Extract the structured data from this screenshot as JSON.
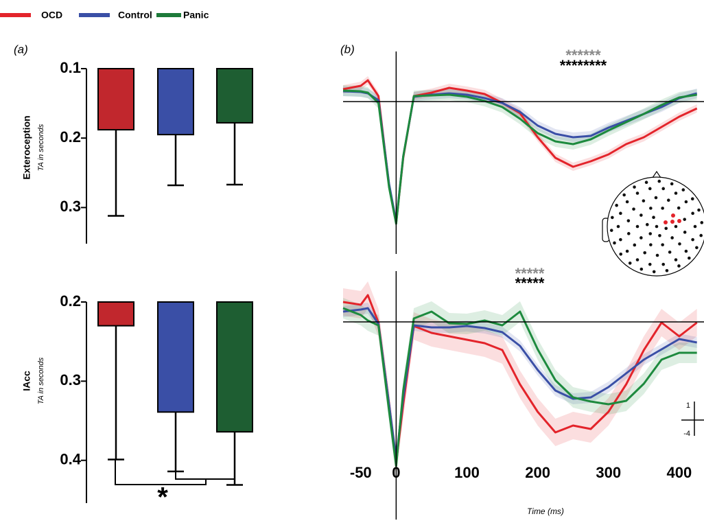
{
  "legend": [
    {
      "name": "OCD",
      "color": "#e3242b"
    },
    {
      "name": "Control",
      "color": "#3a4fa6"
    },
    {
      "name": "Panic",
      "color": "#1d7a3a"
    }
  ],
  "chart_data": [
    {
      "type": "bar",
      "panel_label": "(a)",
      "ylabel": "Exteroception",
      "ylabel_sub": "TA in seconds",
      "colors": [
        "#c1272d",
        "#3a4fa6",
        "#1e5e32"
      ],
      "values": [
        0.188,
        0.195,
        0.178
      ],
      "errors": [
        0.124,
        0.073,
        0.089
      ],
      "ylim": [
        0.1,
        0.352
      ],
      "yticks": [
        0.1,
        0.2,
        0.3
      ],
      "y_inverted": true
    },
    {
      "type": "bar",
      "ylabel": "IAcc",
      "ylabel_sub": "TA in seconds",
      "colors": [
        "#c1272d",
        "#3a4fa6",
        "#1e5e32"
      ],
      "values": [
        0.23,
        0.339,
        0.364
      ],
      "errors": [
        0.169,
        0.075,
        0.067
      ],
      "ylim": [
        0.2,
        0.454
      ],
      "yticks": [
        0.2,
        0.3,
        0.4
      ],
      "y_inverted": true,
      "annotation": "*"
    },
    {
      "type": "line",
      "panel_label": "(b)",
      "x": [
        -75,
        -50,
        -40,
        -25,
        -10,
        0,
        10,
        25,
        50,
        75,
        100,
        125,
        150,
        175,
        200,
        225,
        250,
        275,
        300,
        325,
        350,
        375,
        400,
        425
      ],
      "xlim": [
        -75,
        435
      ],
      "ylim": [
        -22,
        6.3
      ],
      "annotations": [
        {
          "text": "******",
          "color": "#8a8a8a"
        },
        {
          "text": "********",
          "color": "#000000"
        }
      ],
      "series": [
        {
          "color": "#e3242b",
          "sem": 0.6,
          "values": [
            1.8,
            2.3,
            3.1,
            0.8,
            -12.2,
            -17.7,
            -8.2,
            0.8,
            1.3,
            2,
            1.6,
            1.1,
            -0.2,
            -1.7,
            -5.2,
            -8.2,
            -9.5,
            -8.7,
            -7.7,
            -6.2,
            -5.2,
            -3.7,
            -2.2,
            -1.0
          ]
        },
        {
          "color": "#3a4fa6",
          "sem": 0.7,
          "values": [
            1.5,
            1.4,
            1.2,
            0.2,
            -12,
            -17.5,
            -8,
            0.7,
            1.0,
            1.2,
            1.0,
            0.5,
            -0.2,
            -1.5,
            -3.5,
            -4.7,
            -5.2,
            -5.0,
            -3.8,
            -2.8,
            -1.8,
            -0.8,
            0.5,
            1.2
          ]
        },
        {
          "color": "#1d8a3e",
          "sem": 0.8,
          "values": [
            1.6,
            1.5,
            1.3,
            -0.2,
            -12.5,
            -17.8,
            -8,
            0.8,
            0.9,
            1.0,
            0.7,
            0.1,
            -0.8,
            -2.5,
            -4.6,
            -5.8,
            -6.2,
            -5.5,
            -4.2,
            -3.0,
            -1.8,
            -0.5,
            0.6,
            1.0
          ]
        }
      ]
    },
    {
      "type": "line",
      "x": [
        -75,
        -50,
        -40,
        -25,
        -10,
        0,
        10,
        25,
        50,
        75,
        100,
        125,
        150,
        175,
        200,
        225,
        250,
        275,
        300,
        325,
        350,
        375,
        400,
        425
      ],
      "xlim": [
        -75,
        435
      ],
      "ylim": [
        -28.8,
        7
      ],
      "xticks": [
        -50,
        0,
        100,
        200,
        300,
        400
      ],
      "xlabel": "Time (ms)",
      "annotations": [
        {
          "text": "*****",
          "color": "#8a8a8a"
        },
        {
          "text": "*****",
          "color": "#000000"
        }
      ],
      "scale_bar": [
        1,
        -4
      ],
      "series": [
        {
          "color": "#e3242b",
          "sem": 2.0,
          "values": [
            2.9,
            2.5,
            3.9,
            -0.1,
            -12,
            -20.5,
            -12,
            -0.6,
            -1.6,
            -2.1,
            -2.6,
            -3.1,
            -4.1,
            -9.1,
            -13.1,
            -16.1,
            -15.1,
            -15.6,
            -13.1,
            -9.1,
            -4.1,
            -0.1,
            -2.1,
            -0.1
          ]
        },
        {
          "color": "#3a4fa6",
          "sem": 0.8,
          "values": [
            1.5,
            1.8,
            2.0,
            -0.3,
            -12,
            -20.0,
            -11,
            -0.5,
            -0.8,
            -0.8,
            -0.6,
            -0.9,
            -1.5,
            -3.5,
            -7.0,
            -10.0,
            -11.2,
            -11.0,
            -9.5,
            -7.5,
            -5.5,
            -4.0,
            -2.5,
            -3.0
          ]
        },
        {
          "color": "#1d8a3e",
          "sem": 1.5,
          "values": [
            2.0,
            1.0,
            0.2,
            -0.5,
            -13,
            -21.0,
            -10,
            0.5,
            1.5,
            -0.2,
            -0.3,
            0.2,
            -0.5,
            1.5,
            -4.0,
            -8.5,
            -11.0,
            -11.6,
            -12.0,
            -11.5,
            -9.0,
            -5.5,
            -4.5,
            -4.5
          ]
        }
      ]
    }
  ]
}
